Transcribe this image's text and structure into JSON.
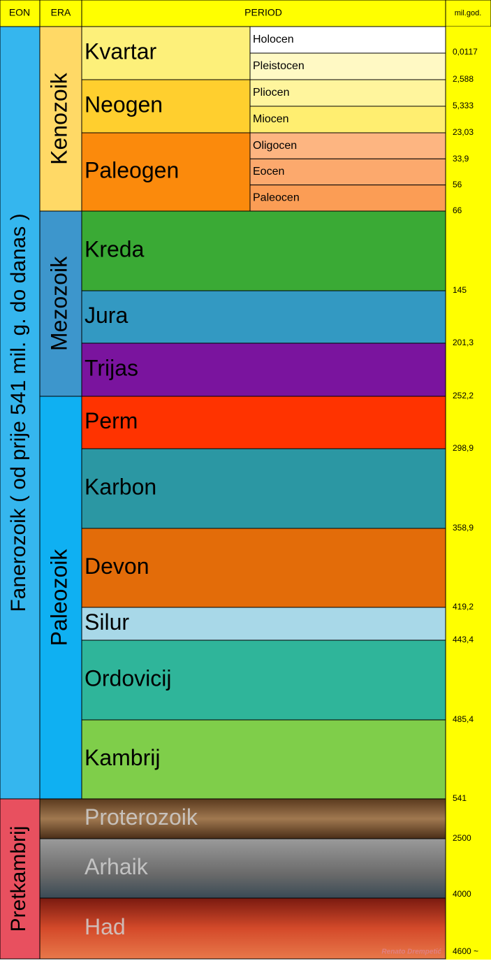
{
  "header": {
    "eon": "EON",
    "era": "ERA",
    "period": "PERIOD",
    "time": "mil.god."
  },
  "eons": [
    {
      "name": "Fanerozoik ( od prije 541 mil. g. do danas )"
    },
    {
      "name": "Pretkambrij"
    }
  ],
  "eras": [
    {
      "name": "Kenozoik"
    },
    {
      "name": "Mezozoik"
    },
    {
      "name": "Paleozoik"
    }
  ],
  "periods": [
    {
      "name": "Kvartar",
      "epochs": [
        "Holocen",
        "Pleistocen"
      ]
    },
    {
      "name": "Neogen",
      "epochs": [
        "Pliocen",
        "Miocen"
      ]
    },
    {
      "name": "Paleogen",
      "epochs": [
        "Oligocen",
        "Eocen",
        "Paleocen"
      ]
    },
    {
      "name": "Kreda"
    },
    {
      "name": "Jura"
    },
    {
      "name": "Trijas"
    },
    {
      "name": "Perm"
    },
    {
      "name": "Karbon"
    },
    {
      "name": "Devon"
    },
    {
      "name": "Silur"
    },
    {
      "name": "Ordovicij"
    },
    {
      "name": "Kambrij"
    },
    {
      "name": "Proterozoik"
    },
    {
      "name": "Arhaik"
    },
    {
      "name": "Had"
    }
  ],
  "times": [
    "0,0117",
    "2,588",
    "5,333",
    "23,03",
    "33,9",
    "56",
    "66",
    "145",
    "201,3",
    "252,2",
    "298,9",
    "358,9",
    "419,2",
    "443,4",
    "485,4",
    "541",
    "2500",
    "4000",
    "4600 ~"
  ],
  "credit": "Renato Drempetić"
}
